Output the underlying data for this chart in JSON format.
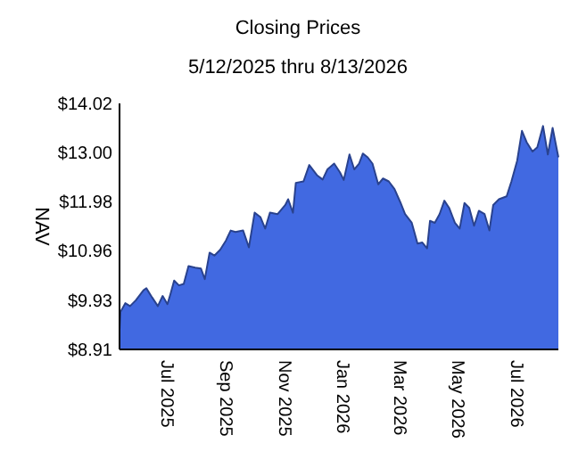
{
  "chart_data": {
    "type": "area",
    "title": "Closing Prices",
    "subtitle": "5/12/2025 thru 8/13/2026",
    "ylabel": "NAV",
    "x": [
      "2025-05-12",
      "2025-05-13",
      "2025-05-18",
      "2025-05-23",
      "2025-05-29",
      "2025-06-06",
      "2025-06-09",
      "2025-06-15",
      "2025-06-21",
      "2025-06-26",
      "2025-07-01",
      "2025-07-04",
      "2025-07-08",
      "2025-07-13",
      "2025-07-18",
      "2025-07-23",
      "2025-07-30",
      "2025-08-05",
      "2025-08-09",
      "2025-08-14",
      "2025-08-19",
      "2025-08-25",
      "2025-08-31",
      "2025-09-05",
      "2025-09-10",
      "2025-09-18",
      "2025-09-24",
      "2025-09-30",
      "2025-10-06",
      "2025-10-11",
      "2025-10-16",
      "2025-10-24",
      "2025-11-01",
      "2025-11-04",
      "2025-11-09",
      "2025-11-12",
      "2025-11-20",
      "2025-11-26",
      "2025-12-04",
      "2025-12-10",
      "2025-12-15",
      "2025-12-22",
      "2025-12-28",
      "2026-01-01",
      "2026-01-07",
      "2026-01-12",
      "2026-01-17",
      "2026-01-21",
      "2026-01-26",
      "2026-01-31",
      "2026-02-06",
      "2026-02-11",
      "2026-02-17",
      "2026-02-23",
      "2026-03-01",
      "2026-03-06",
      "2026-03-13",
      "2026-03-19",
      "2026-03-24",
      "2026-03-29",
      "2026-04-01",
      "2026-04-06",
      "2026-04-11",
      "2026-04-16",
      "2026-04-21",
      "2026-04-27",
      "2026-05-02",
      "2026-05-07",
      "2026-05-12",
      "2026-05-17",
      "2026-05-22",
      "2026-05-28",
      "2026-06-02",
      "2026-06-06",
      "2026-06-12",
      "2026-06-20",
      "2026-06-25",
      "2026-07-01",
      "2026-07-06",
      "2026-07-11",
      "2026-07-17",
      "2026-07-22",
      "2026-07-28",
      "2026-08-02",
      "2026-08-07",
      "2026-08-13"
    ],
    "series": [
      {
        "color": "#4169e1",
        "values": [
          9.32,
          9.69,
          9.87,
          9.81,
          9.93,
          10.14,
          10.18,
          9.99,
          9.81,
          10.02,
          9.85,
          10.05,
          10.34,
          10.24,
          10.27,
          10.64,
          10.61,
          10.59,
          10.37,
          10.92,
          10.86,
          10.98,
          11.17,
          11.38,
          11.35,
          11.38,
          11.03,
          11.75,
          11.66,
          11.42,
          11.75,
          11.72,
          11.91,
          12.03,
          11.75,
          12.37,
          12.4,
          12.74,
          12.53,
          12.44,
          12.65,
          12.77,
          12.59,
          12.43,
          12.96,
          12.65,
          12.77,
          12.98,
          12.9,
          12.77,
          12.34,
          12.46,
          12.4,
          12.24,
          11.97,
          11.72,
          11.54,
          11.11,
          11.13,
          11.01,
          11.58,
          11.54,
          11.72,
          12.0,
          11.85,
          11.54,
          11.42,
          11.95,
          11.85,
          11.48,
          11.79,
          11.72,
          11.38,
          11.91,
          12.03,
          12.09,
          12.4,
          12.83,
          13.45,
          13.21,
          13.02,
          13.11,
          13.55,
          12.96,
          13.51,
          12.9
        ]
      }
    ],
    "xlim": [
      "2025-05-12",
      "2026-08-13"
    ],
    "xticks": [
      {
        "value": "2025-07-01",
        "label": "Jul 2025"
      },
      {
        "value": "2025-09-01",
        "label": "Sep 2025"
      },
      {
        "value": "2025-11-01",
        "label": "Nov 2025"
      },
      {
        "value": "2026-01-01",
        "label": "Jan 2026"
      },
      {
        "value": "2026-03-01",
        "label": "Mar 2026"
      },
      {
        "value": "2026-05-01",
        "label": "May 2026"
      },
      {
        "value": "2026-07-01",
        "label": "Jul 2026"
      }
    ],
    "ylim": [
      8.91,
      14.02
    ],
    "yticks": [
      {
        "value": 8.91,
        "label": "$8.91"
      },
      {
        "value": 9.93,
        "label": "$9.93"
      },
      {
        "value": 10.96,
        "label": "$10.96"
      },
      {
        "value": 11.98,
        "label": "$11.98"
      },
      {
        "value": 13.0,
        "label": "$13.00"
      },
      {
        "value": 14.02,
        "label": "$14.02"
      }
    ],
    "grid": false
  }
}
